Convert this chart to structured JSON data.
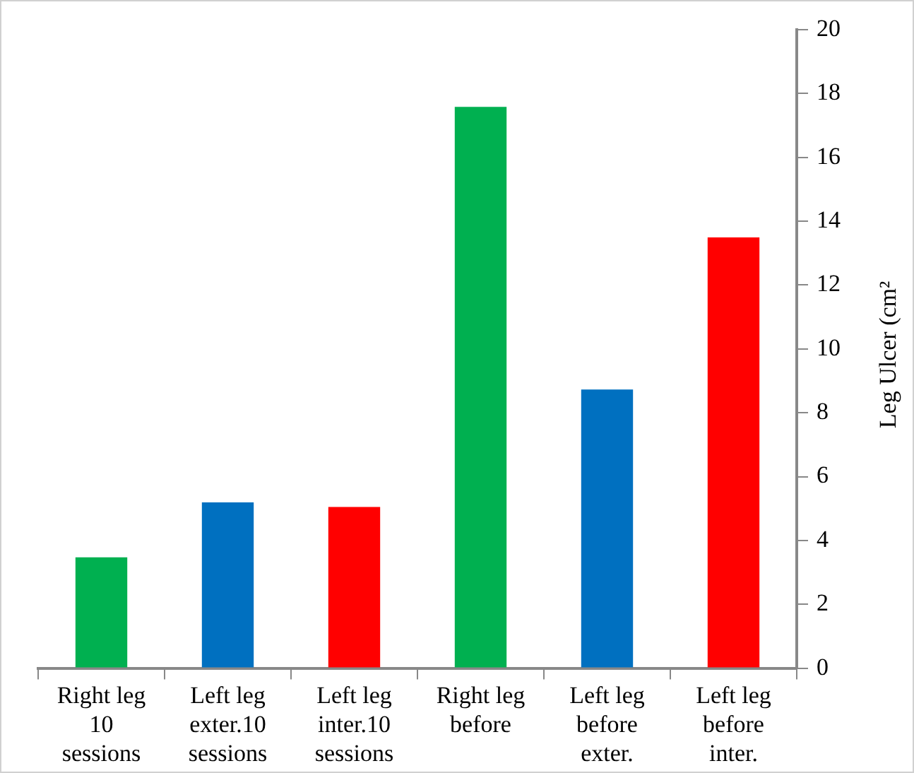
{
  "chart_data": {
    "type": "bar",
    "ylabel": "Leg Ulcer (cm²",
    "categories": [
      "Right leg\n10\nsessions",
      "Left leg\nexter.10\nsessions",
      "Left leg\ninter.10\nsessions",
      "Right leg\nbefore",
      "Left leg\nbefore\nexter.",
      "Left leg\nbefore\ninter."
    ],
    "values": [
      3.47,
      5.19,
      5.05,
      17.58,
      8.73,
      13.49
    ],
    "colors": [
      "#00b050",
      "#0070c0",
      "#ff0000",
      "#00b050",
      "#0070c0",
      "#ff0000"
    ],
    "ylim": [
      0,
      20
    ],
    "yticks": [
      0,
      2,
      4,
      6,
      8,
      10,
      12,
      14,
      16,
      18,
      20
    ],
    "grid": false,
    "legend": false
  }
}
